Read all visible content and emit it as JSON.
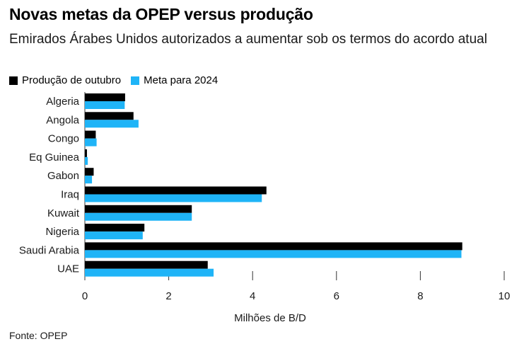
{
  "header": {
    "title": "Novas metas da OPEP versus produção",
    "subtitle": "Emirados Árabes Unidos autorizados a aumentar sob os termos do acordo atual"
  },
  "footer": {
    "source": "Fonte: OPEP"
  },
  "chart_data": {
    "type": "bar",
    "orientation": "horizontal",
    "title": "Novas metas da OPEP versus produção",
    "subtitle": "Emirados Árabes Unidos autorizados a aumentar sob os termos do acordo atual",
    "xlabel": "Milhões de B/D",
    "ylabel": "",
    "xlim": [
      0,
      10
    ],
    "xticks": [
      0,
      2,
      4,
      6,
      8,
      10
    ],
    "grid": true,
    "legend_position": "top-left",
    "categories": [
      "Algeria",
      "Angola",
      "Congo",
      "Eq Guinea",
      "Gabon",
      "Iraq",
      "Kuwait",
      "Nigeria",
      "Saudi Arabia",
      "UAE"
    ],
    "series": [
      {
        "name": "Produção de outubro",
        "color": "#000000",
        "values": [
          0.96,
          1.16,
          0.26,
          0.05,
          0.21,
          4.33,
          2.55,
          1.42,
          9.0,
          2.93
        ]
      },
      {
        "name": "Meta para 2024",
        "color": "#1fb4f7",
        "values": [
          0.95,
          1.28,
          0.28,
          0.07,
          0.17,
          4.22,
          2.55,
          1.38,
          8.98,
          3.07
        ]
      }
    ]
  }
}
